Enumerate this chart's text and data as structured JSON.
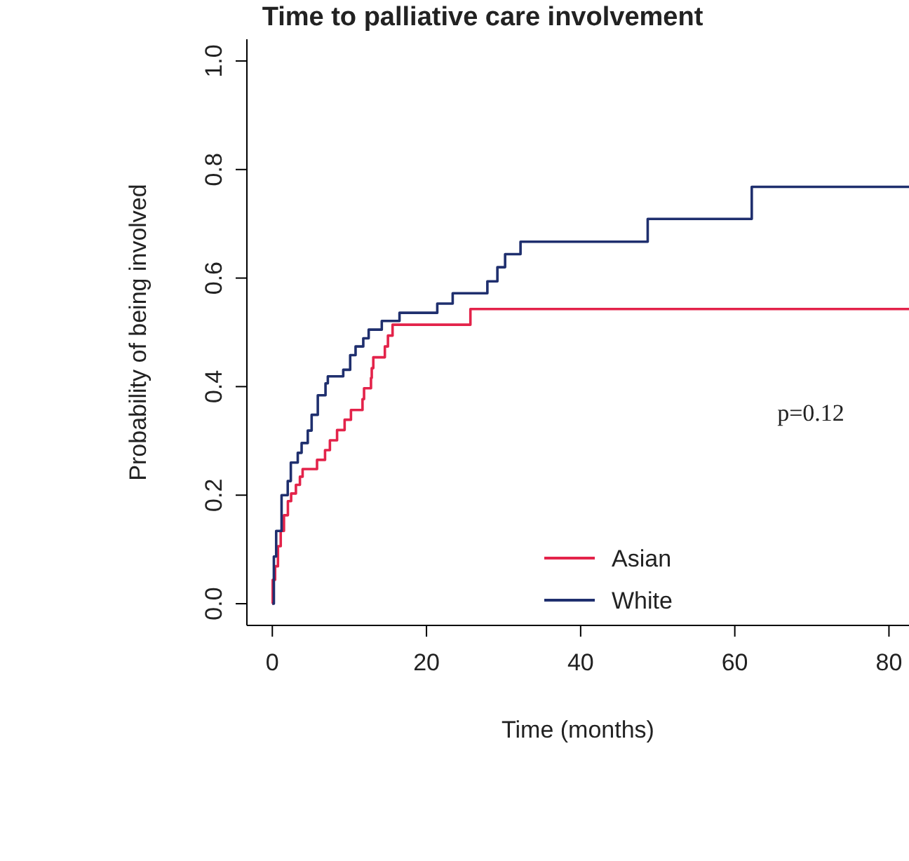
{
  "chart_data": {
    "type": "step",
    "title": "Time to palliative care involvement",
    "xlabel": "Time (months)",
    "ylabel": "Probability of being involved",
    "xlim": [
      -3.3,
      82.6
    ],
    "ylim": [
      -0.04,
      1.04
    ],
    "xticks": [
      0,
      20,
      40,
      60,
      80
    ],
    "yticks": [
      {
        "value": 0,
        "label": "0.0"
      },
      {
        "value": 0.2,
        "label": "0.2"
      },
      {
        "value": 0.4,
        "label": "0.4"
      },
      {
        "value": 0.6,
        "label": "0.6"
      },
      {
        "value": 0.8,
        "label": "0.8"
      },
      {
        "value": 1,
        "label": "1.0"
      }
    ],
    "grid": false,
    "legend": "bottom right",
    "annotations": [
      "p=0.12"
    ],
    "series": [
      {
        "name": "Asian",
        "color": "#e3234a",
        "x": [
          0,
          0.05,
          0.36,
          0.73,
          1.09,
          1.51,
          2.02,
          2.44,
          3.06,
          3.58,
          3.93,
          5.8,
          6.84,
          7.47,
          8.4,
          9.38,
          10.2,
          11.7,
          11.9,
          12.8,
          12.9,
          13.1,
          14.6,
          15.0,
          15.6,
          25.7,
          82.6
        ],
        "values": [
          0,
          0.044,
          0.069,
          0.106,
          0.134,
          0.163,
          0.189,
          0.203,
          0.219,
          0.234,
          0.248,
          0.265,
          0.283,
          0.301,
          0.32,
          0.339,
          0.357,
          0.377,
          0.397,
          0.416,
          0.434,
          0.454,
          0.474,
          0.494,
          0.514,
          0.543,
          0.543
        ]
      },
      {
        "name": "White",
        "color": "#1f2f6e",
        "x": [
          0,
          0.2,
          0.5,
          1.2,
          2.0,
          2.4,
          3.3,
          3.8,
          4.6,
          5.1,
          5.9,
          6.9,
          7.2,
          9.2,
          10.1,
          10.8,
          11.8,
          12.5,
          14.2,
          16.5,
          21.4,
          23.4,
          27.9,
          29.2,
          30.2,
          32.2,
          48.7,
          62.2,
          82.6
        ],
        "values": [
          0,
          0.087,
          0.134,
          0.2,
          0.226,
          0.26,
          0.278,
          0.296,
          0.319,
          0.348,
          0.384,
          0.406,
          0.419,
          0.431,
          0.458,
          0.474,
          0.489,
          0.505,
          0.521,
          0.536,
          0.553,
          0.572,
          0.594,
          0.62,
          0.644,
          0.667,
          0.709,
          0.768,
          0.768
        ]
      }
    ]
  }
}
